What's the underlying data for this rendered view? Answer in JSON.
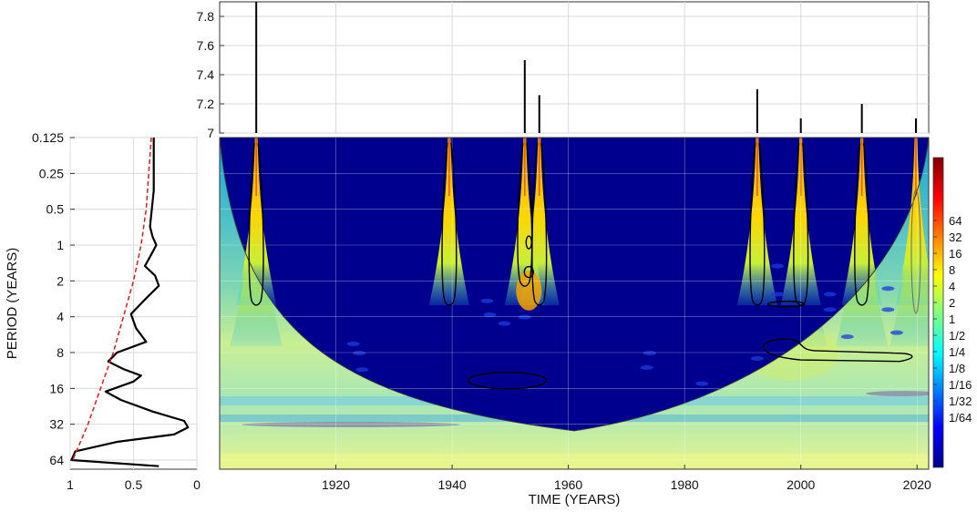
{
  "chart_data": [
    {
      "type": "bar",
      "panel": "time-series",
      "xlim": [
        1900,
        2022
      ],
      "ylim": [
        7,
        7.9
      ],
      "ytick_labels": [
        "7",
        "7.2",
        "7.4",
        "7.6",
        "7.8"
      ],
      "grid": true,
      "bars": [
        {
          "x": 1906.3,
          "y": 7.9
        },
        {
          "x": 1952.5,
          "y": 7.5
        },
        {
          "x": 1955.0,
          "y": 7.26
        },
        {
          "x": 1992.5,
          "y": 7.3
        },
        {
          "x": 2000.0,
          "y": 7.1
        },
        {
          "x": 2010.5,
          "y": 7.2
        },
        {
          "x": 2019.8,
          "y": 7.1
        }
      ]
    },
    {
      "type": "line",
      "panel": "global-wavelet-spectrum",
      "xlim": [
        1,
        0
      ],
      "xtick_labels": [
        "1",
        "0.5",
        "0"
      ],
      "ylabel": "PERIOD (YEARS)",
      "ytick_labels": [
        "0.125",
        "0.25",
        "0.5",
        "1",
        "2",
        "4",
        "8",
        "16",
        "32",
        "64"
      ],
      "y_scale": "log2",
      "grid": true,
      "series": [
        {
          "style": "solid-black",
          "points": [
            [
              0.34,
              0.125
            ],
            [
              0.34,
              0.35
            ],
            [
              0.36,
              0.55
            ],
            [
              0.37,
              0.7
            ],
            [
              0.35,
              0.85
            ],
            [
              0.32,
              1.0
            ],
            [
              0.36,
              1.2
            ],
            [
              0.41,
              1.5
            ],
            [
              0.33,
              1.8
            ],
            [
              0.3,
              2.2
            ],
            [
              0.4,
              2.8
            ],
            [
              0.52,
              3.8
            ],
            [
              0.48,
              5.0
            ],
            [
              0.4,
              6.5
            ],
            [
              0.63,
              8.0
            ],
            [
              0.7,
              9.5
            ],
            [
              0.58,
              11
            ],
            [
              0.44,
              12.5
            ],
            [
              0.5,
              14
            ],
            [
              0.72,
              17
            ],
            [
              0.6,
              20
            ],
            [
              0.35,
              25
            ],
            [
              0.1,
              30
            ],
            [
              0.07,
              34
            ],
            [
              0.18,
              39
            ],
            [
              0.63,
              45
            ],
            [
              0.96,
              54
            ],
            [
              0.99,
              64
            ],
            [
              0.3,
              72
            ]
          ]
        },
        {
          "style": "dashed-red",
          "points": [
            [
              0.36,
              0.125
            ],
            [
              0.38,
              0.25
            ],
            [
              0.4,
              0.5
            ],
            [
              0.44,
              1
            ],
            [
              0.5,
              2
            ],
            [
              0.58,
              4
            ],
            [
              0.66,
              8
            ],
            [
              0.76,
              16
            ],
            [
              0.86,
              32
            ],
            [
              0.98,
              64
            ]
          ]
        }
      ]
    },
    {
      "type": "heatmap",
      "panel": "wavelet-power-spectrum",
      "xlabel": "TIME (YEARS)",
      "xlim": [
        1900,
        2022
      ],
      "xtick_labels": [
        "1920",
        "1940",
        "1960",
        "1980",
        "2000",
        "2020"
      ],
      "y_scale": "log2",
      "ylim": [
        0.125,
        90
      ],
      "grid": true,
      "colormap": "jet",
      "colorbar_labels": [
        "64",
        "32",
        "16",
        "8",
        "4",
        "2",
        "1",
        "1/2",
        "1/4",
        "1/8",
        "1/16",
        "1/32",
        "1/64"
      ],
      "high_power_columns": [
        1906.3,
        1939.5,
        1952.5,
        1955.0,
        1992.5,
        2000.0,
        2010.5,
        2019.8
      ],
      "significance_contours": [
        {
          "center": [
            1949.5,
            15.5
          ],
          "note": "ellipse"
        },
        {
          "center": [
            1997.5,
            3.4
          ],
          "note": "ellipse"
        },
        {
          "center": [
            2005,
            9.0
          ],
          "note": "ellipse"
        }
      ],
      "cone_of_influence_apex": [
        1961,
        42
      ]
    }
  ]
}
